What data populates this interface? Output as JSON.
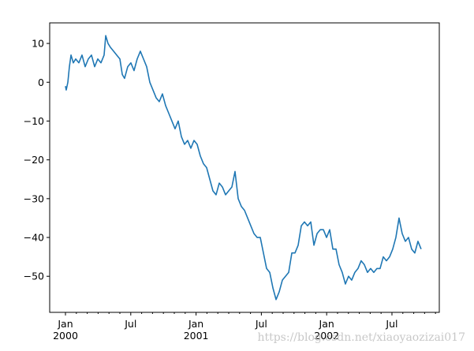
{
  "chart_data": {
    "type": "line",
    "watermark": "https://blog.csdn.net/xiaoyaozizai017",
    "color": "#1f77b4",
    "x": [
      0,
      0.07,
      0.22,
      0.36,
      0.51,
      0.72,
      0.94,
      1.23,
      1.52,
      1.81,
      2.1,
      2.39,
      2.68,
      2.97,
      3.26,
      3.55,
      3.7,
      3.91,
      4.13,
      4.42,
      4.71,
      5.0,
      5.22,
      5.43,
      5.72,
      6.01,
      6.3,
      6.59,
      6.88,
      7.17,
      7.46,
      7.75,
      8.04,
      8.33,
      8.62,
      8.91,
      9.2,
      9.49,
      9.78,
      10.07,
      10.36,
      10.65,
      10.94,
      11.23,
      11.52,
      11.81,
      12.1,
      12.39,
      12.68,
      12.97,
      13.26,
      13.55,
      13.84,
      14.13,
      14.42,
      14.71,
      15.0,
      15.29,
      15.58,
      15.87,
      16.16,
      16.45,
      16.74,
      17.03,
      17.32,
      17.61,
      17.9,
      18.19,
      18.48,
      18.77,
      19.06,
      19.35,
      19.64,
      19.93,
      20.22,
      20.51,
      20.8,
      21.09,
      21.38,
      21.67,
      21.96,
      22.25,
      22.54,
      22.83,
      23.12,
      23.41,
      23.7,
      23.99,
      24.28,
      24.57,
      24.86,
      25.14,
      25.43,
      25.72,
      26.01,
      26.3,
      26.59,
      26.88,
      27.17,
      27.46,
      27.75,
      28.04,
      28.33,
      28.62,
      28.91,
      29.2,
      29.49,
      29.78,
      30.07,
      30.36,
      30.65,
      30.94,
      31.23,
      31.52,
      31.81,
      32.1,
      32.39,
      32.68
    ],
    "values": [
      -1,
      -2,
      0,
      4,
      7,
      5,
      6,
      5,
      7,
      4,
      6,
      7,
      4,
      6,
      5,
      7,
      12,
      10,
      9,
      8,
      7,
      6,
      2,
      1,
      4,
      5,
      3,
      6,
      8,
      6,
      4,
      0,
      -2,
      -4,
      -5,
      -3,
      -6,
      -8,
      -10,
      -12,
      -10,
      -14,
      -16,
      -15,
      -17,
      -15,
      -16,
      -19,
      -21,
      -22,
      -25,
      -28,
      -29,
      -26,
      -27,
      -29,
      -28,
      -27,
      -23,
      -30,
      -32,
      -33,
      -35,
      -37,
      -39,
      -40,
      -40,
      -44,
      -48,
      -49,
      -53,
      -56,
      -54,
      -51,
      -50,
      -49,
      -44,
      -44,
      -42,
      -37,
      -36,
      -37,
      -36,
      -42,
      -39,
      -38,
      -38,
      -40,
      -38,
      -43,
      -43,
      -47,
      -49,
      -52,
      -50,
      -51,
      -49,
      -48,
      -46,
      -47,
      -49,
      -48,
      -49,
      -48,
      -48,
      -45,
      -46,
      -45,
      -43,
      -40,
      -35,
      -39,
      -41,
      -40,
      -43,
      -44,
      -41,
      -43
    ],
    "xlim": [
      -1.45,
      34.35
    ],
    "xticks": [
      {
        "value": 0,
        "label": "Jan\n2000"
      },
      {
        "value": 6,
        "label": "Jul"
      },
      {
        "value": 12,
        "label": "Jan\n2001"
      },
      {
        "value": 18,
        "label": "Jul"
      },
      {
        "value": 24,
        "label": "Jan\n2002"
      },
      {
        "value": 30,
        "label": "Jul"
      }
    ],
    "xminorticks": [
      1,
      2,
      3,
      4,
      5,
      7,
      8,
      9,
      10,
      11,
      13,
      14,
      15,
      16,
      17,
      19,
      20,
      21,
      22,
      23,
      25,
      26,
      27,
      28,
      29,
      31,
      32,
      33,
      34
    ],
    "ylim": [
      -59.3,
      15.3
    ],
    "yticks": [
      10,
      0,
      {
        "value": -10,
        "label": "−10"
      },
      {
        "value": -20,
        "label": "−20"
      },
      {
        "value": -30,
        "label": "−30"
      },
      {
        "value": -40,
        "label": "−40"
      },
      {
        "value": -50,
        "label": "−50"
      }
    ]
  }
}
